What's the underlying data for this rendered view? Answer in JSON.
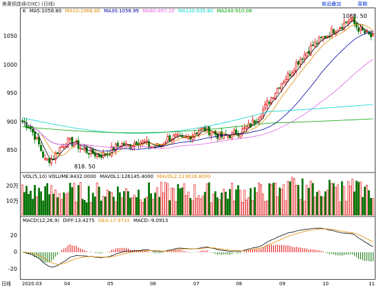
{
  "window": {
    "title": "美黄铜连续(DXC) (日线)",
    "buttons": [
      "新品叠加",
      "周期"
    ]
  },
  "price_panel": {
    "tag": "K",
    "ma": [
      {
        "label": "MA5:1058.80",
        "color": "#000000"
      },
      {
        "label": "MA10:1066.80",
        "color": "#e08a00"
      },
      {
        "label": "MA30:1058.99",
        "color": "#0000a0"
      },
      {
        "label": "MA60:997.20",
        "color": "#e060e0"
      },
      {
        "label": "MA120:935.80",
        "color": "#00d0d0"
      },
      {
        "label": "MA240:910.08",
        "color": "#00a000"
      }
    ],
    "y_ticks": [
      "1050",
      "1000",
      "950",
      "900",
      "850"
    ],
    "high_label": "1088. 50",
    "low_label": "818. 50"
  },
  "vol_panel": {
    "legend": [
      {
        "label": "VOL(5,10) VOLUME:8432.0000",
        "color": "#000000"
      },
      {
        "label": "MAVOL1:126145.4000",
        "color": "#000000"
      },
      {
        "label": "MAVOL2:113616.8000",
        "color": "#e08a00"
      }
    ],
    "y_ticks": [
      "20万",
      "10万"
    ]
  },
  "macd_panel": {
    "legend": [
      {
        "label": "MACD(12,26,9)",
        "color": "#000000"
      },
      {
        "label": "DIFF:13.4275",
        "color": "#000000"
      },
      {
        "label": "DEA:17.9731",
        "color": "#e08a00"
      },
      {
        "label": "MACD:-9.0913",
        "color": "#000000"
      }
    ],
    "y_ticks": [
      "20",
      "0",
      "-20"
    ]
  },
  "x_axis": {
    "labels": [
      "日线",
      "2020.03",
      "04",
      "05",
      "06",
      "07",
      "08",
      "09",
      "10",
      "11"
    ]
  },
  "chart_data": {
    "type": "candlestick",
    "x_periods": [
      "2020.03",
      "04",
      "05",
      "06",
      "07",
      "08",
      "09",
      "10",
      "11"
    ],
    "close_path": [
      905,
      895,
      870,
      835,
      840,
      860,
      870,
      865,
      855,
      850,
      845,
      848,
      858,
      865,
      862,
      870,
      868,
      860,
      862,
      875,
      878,
      872,
      880,
      888,
      892,
      885,
      878,
      880,
      885,
      890,
      900,
      915,
      935,
      955,
      975,
      990,
      1010,
      1025,
      1040,
      1050,
      1060,
      1070,
      1078,
      1088,
      1072,
      1062,
      1055
    ],
    "ma_values": {
      "MA5": 1058.8,
      "MA10": 1066.8,
      "MA30": 1058.99,
      "MA60": 997.2,
      "MA120": 935.8,
      "MA240": 910.08
    },
    "high": 1088.5,
    "low": 818.5,
    "ylim": [
      818,
      1095
    ],
    "volume": {
      "VOLUME": 8432.0,
      "MAVOL1": 126145.4,
      "MAVOL2": 113616.8
    },
    "macd": {
      "DIFF": 13.4275,
      "DEA": 17.9731,
      "MACD": -9.0913
    }
  }
}
